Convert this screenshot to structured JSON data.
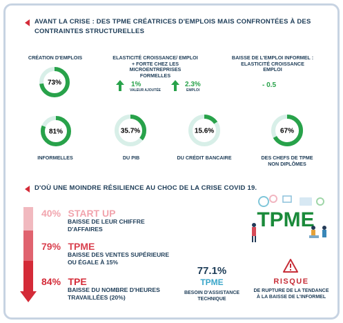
{
  "section1": {
    "title_line1": "AVANT LA CRISE : DES TPME CRÉATRICES D'EMPLOIS MAIS CONFRONTÉES À DES",
    "title_line2": "CONTRAINTES STRUCTURELLES"
  },
  "col1": {
    "header": "CRÉATION D'EMPLOIS",
    "percent_label": "73%",
    "percent": 73
  },
  "col2": {
    "header_line1": "ELASTICITÉ CROISSANCE/ EMPLOI",
    "header_line2": "+ FORTE CHEZ LES MICROENTREPRISES",
    "header_line3": "FORMELLES",
    "stat1_value": "1%",
    "stat1_caption": "VALEUR AJOUTÉE",
    "stat2_value": "2.3%",
    "stat2_caption": "EMPLOI"
  },
  "col3": {
    "header_line1": "BAISSE DE L'EMPLOI INFORMEL :",
    "header_line2": "ELASTICITÉ CROISSANCE",
    "header_line3": "EMPLOI",
    "value": "- 0.5"
  },
  "rings": [
    {
      "value_label": "81%",
      "percent": 81,
      "label_line1": "INFORMELLES",
      "label_line2": ""
    },
    {
      "value_label": "35.7%",
      "percent": 35.7,
      "label_line1": "DU PIB",
      "label_line2": ""
    },
    {
      "value_label": "15.6%",
      "percent": 15.6,
      "label_line1": "DU CRÉDIT BANCAIRE",
      "label_line2": ""
    },
    {
      "value_label": "67%",
      "percent": 67,
      "label_line1": "DES CHEFS DE TPME",
      "label_line2": "NON DIPLÔMES"
    }
  ],
  "section2": {
    "title": "D'OÙ UNE MOINDRE RÉSILIENCE AU CHOC DE LA CRISE COVID 19."
  },
  "rows": [
    {
      "percent": "40%",
      "title": "START UP",
      "desc_line1": "BAISSE DE LEUR CHIFFRE",
      "desc_line2": "D'AFFAIRES",
      "color": "#e99aa2"
    },
    {
      "percent": "79%",
      "title": "TPME",
      "desc_line1": "BAISSE DES VENTES SUPÉRIEURE",
      "desc_line2": "OU ÉGALE À 15%",
      "color": "#d9414f"
    },
    {
      "percent": "84%",
      "title": "TPE",
      "desc_line1": "BAISSE DU NOMBRE D'HEURES",
      "desc_line2": "TRAVAILLÉES (20%)",
      "color": "#d42b38"
    }
  ],
  "assist": {
    "value": "77.1%",
    "title": "TPME",
    "desc_line1": "BESOIN D'ASSISTANCE",
    "desc_line2": "TECHNIQUE"
  },
  "risk": {
    "title": "RISQUE",
    "desc_line1": "DE RUPTURE DE LA TENDANCE",
    "desc_line2": "À LA BAISSE DE L'INFORMEL"
  },
  "illustration": {
    "word": "TPME"
  },
  "colors": {
    "navy": "#1d3c57",
    "green": "#28a24a",
    "ring_track": "#d8efe8",
    "red": "#d42b38",
    "teal": "#3aa6c9",
    "risk_red": "#c62c36",
    "pale_red": "#f1b9bf"
  },
  "icons": [
    "bullet-arrow-icon",
    "green-up-arrow-icon",
    "red-down-arrow-icon",
    "warning-triangle-icon"
  ]
}
